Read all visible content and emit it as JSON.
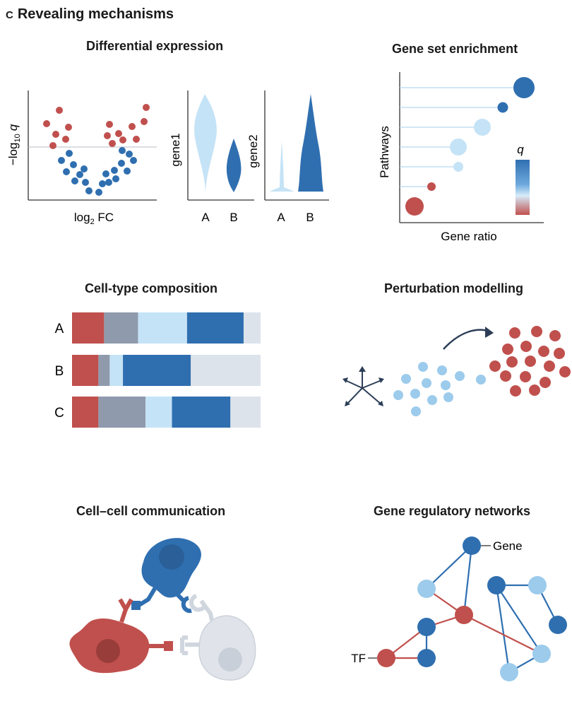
{
  "figure": {
    "letter": "c",
    "title": "Revealing mechanisms"
  },
  "colors": {
    "red": "#c0504d",
    "darkblue": "#2f6fb0",
    "lightblue": "#9ccbec",
    "paleblue": "#c5e3f6",
    "gray": "#8f9aad",
    "lightgray": "#dde3ea",
    "navy": "#2c3e57"
  },
  "differential_expression": {
    "title": "Differential expression",
    "volcano": {
      "ylabel_main": "−log",
      "ylabel_sub": "10",
      "ylabel_var": "q",
      "xlabel_main": "log",
      "xlabel_sub": "2",
      "xlabel_suffix": " FC"
    },
    "violin1": {
      "ylabel": "gene1",
      "categories": [
        "A",
        "B"
      ]
    },
    "violin2": {
      "ylabel": "gene2",
      "categories": [
        "A",
        "B"
      ]
    }
  },
  "gene_set_enrichment": {
    "title": "Gene set enrichment",
    "ylabel": "Pathways",
    "xlabel": "Gene ratio",
    "legend_label": "q"
  },
  "cell_type_composition": {
    "title": "Cell-type composition",
    "chart_data": {
      "type": "bar",
      "orientation": "horizontal-stacked",
      "categories": [
        "A",
        "B",
        "C"
      ],
      "series": [
        {
          "color": "#c0504d",
          "values": [
            17,
            14,
            14
          ]
        },
        {
          "color": "#8f9aad",
          "values": [
            18,
            6,
            25
          ]
        },
        {
          "color": "#c5e3f6",
          "values": [
            26,
            7,
            14
          ]
        },
        {
          "color": "#2f6fb0",
          "values": [
            30,
            36,
            31
          ]
        },
        {
          "color": "#dde3ea",
          "values": [
            9,
            37,
            16
          ]
        }
      ]
    }
  },
  "perturbation_modelling": {
    "title": "Perturbation modelling"
  },
  "cell_cell_communication": {
    "title": "Cell–cell communication"
  },
  "gene_regulatory_networks": {
    "title": "Gene regulatory networks",
    "gene_label": "Gene",
    "tf_label": "TF"
  }
}
